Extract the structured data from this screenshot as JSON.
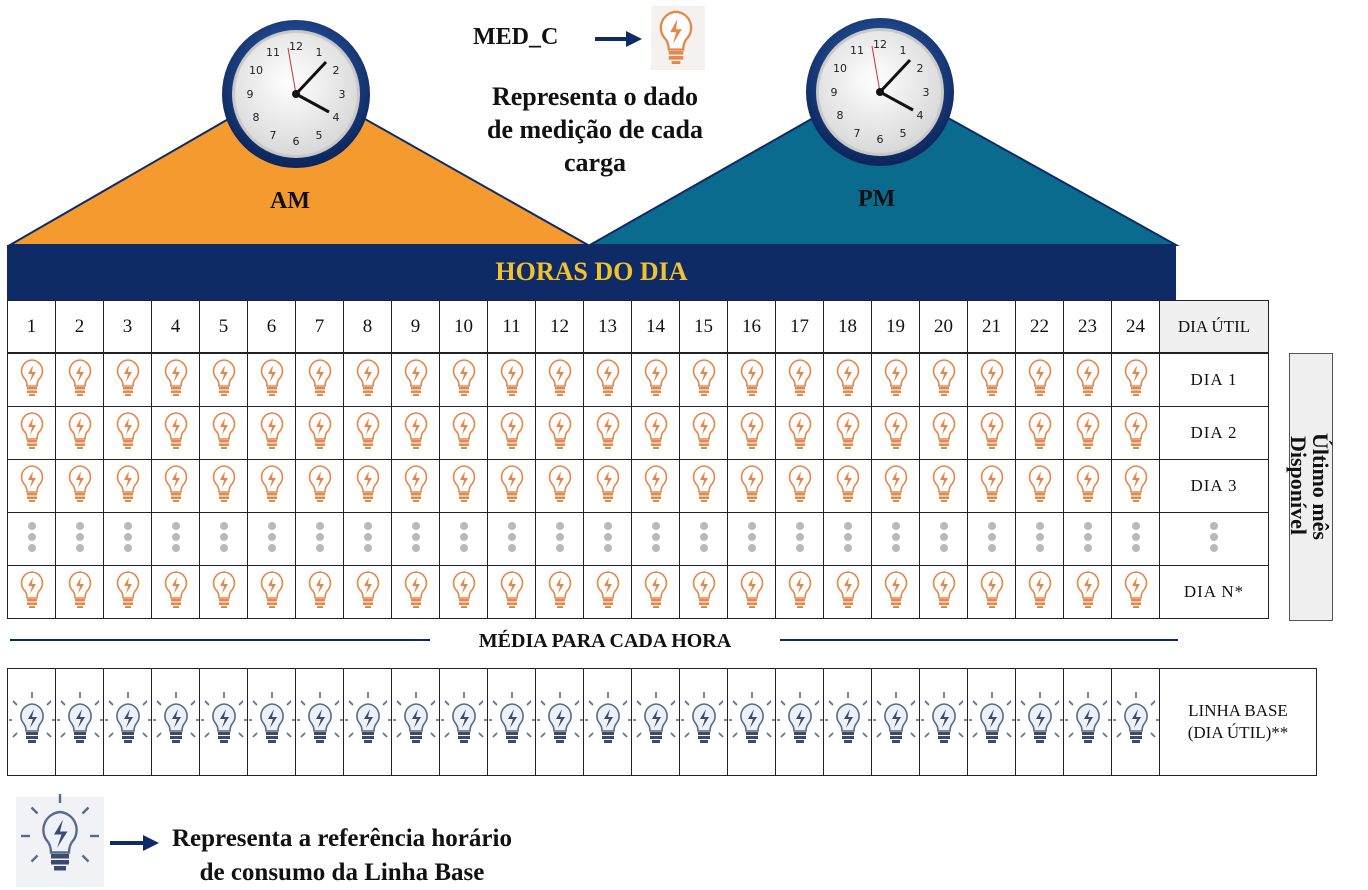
{
  "legend_top": {
    "code": "MED_C",
    "description_lines": [
      "Representa o dado",
      "de medição de cada",
      "carga"
    ]
  },
  "periods": {
    "am": "AM",
    "pm": "PM"
  },
  "banner_title": "HORAS DO DIA",
  "hours": [
    "1",
    "2",
    "3",
    "4",
    "5",
    "6",
    "7",
    "8",
    "9",
    "10",
    "11",
    "12",
    "13",
    "14",
    "15",
    "16",
    "17",
    "18",
    "19",
    "20",
    "21",
    "22",
    "23",
    "24"
  ],
  "dia_util_header": "DIA ÚTIL",
  "rows": [
    {
      "label": "DIA 1",
      "kind": "bulb"
    },
    {
      "label": "DIA 2",
      "kind": "bulb"
    },
    {
      "label": "DIA 3",
      "kind": "bulb"
    },
    {
      "label": "",
      "kind": "dots"
    },
    {
      "label": "DIA N*",
      "kind": "bulb"
    }
  ],
  "side_label_lines": [
    "Último mês",
    "Disponível"
  ],
  "media_label": "MÉDIA PARA CADA HORA",
  "baseline_label_lines": [
    "LINHA BASE",
    "(DIA ÚTIL)**"
  ],
  "legend_bottom": {
    "description_lines": [
      "Representa a referência horário",
      "de consumo da Linha Base"
    ]
  },
  "colors": {
    "am": "#f59a2f",
    "pm": "#0a6b8f",
    "banner": "#0e2a67",
    "banner_text": "#f2c12e",
    "bulb": "#e6874a",
    "baseline_bulb": "#3c4a6e"
  }
}
